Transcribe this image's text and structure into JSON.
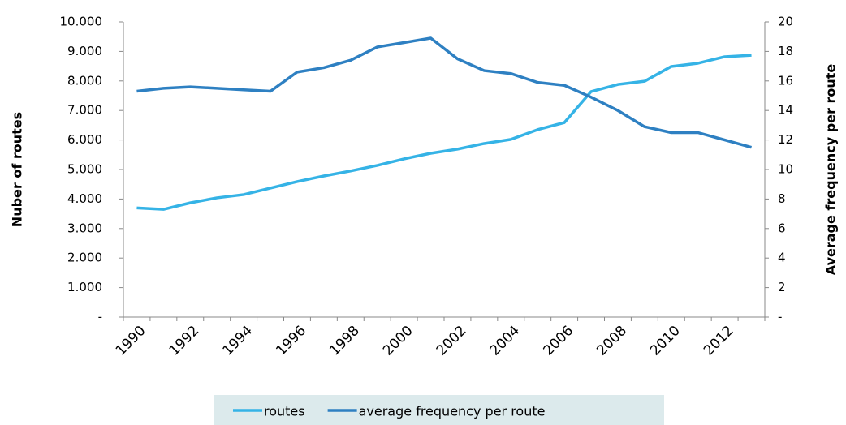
{
  "chart_data": {
    "type": "line",
    "categories": [
      "1990",
      null,
      "1992",
      null,
      "1994",
      null,
      "1996",
      null,
      "1998",
      null,
      "2000",
      null,
      "2002",
      null,
      "2004",
      null,
      "2006",
      null,
      "2008",
      null,
      "2010",
      null,
      "2012",
      null
    ],
    "ylabel": "Nuber of  routes",
    "y2label": "Average frequency per route",
    "ylim": [
      0,
      10000
    ],
    "yticks": [
      {
        "value": 0,
        "label": "-"
      },
      {
        "value": 1000,
        "label": "1.000"
      },
      {
        "value": 2000,
        "label": "2.000"
      },
      {
        "value": 3000,
        "label": "3.000"
      },
      {
        "value": 4000,
        "label": "4.000"
      },
      {
        "value": 5000,
        "label": "5.000"
      },
      {
        "value": 6000,
        "label": "6.000"
      },
      {
        "value": 7000,
        "label": "7.000"
      },
      {
        "value": 8000,
        "label": "8.000"
      },
      {
        "value": 9000,
        "label": "9.000"
      },
      {
        "value": 10000,
        "label": "10.000"
      }
    ],
    "y2lim": [
      0,
      20
    ],
    "y2ticks": [
      {
        "value": 0,
        "label": "-"
      },
      2,
      4,
      6,
      8,
      10,
      12,
      14,
      16,
      18,
      20
    ],
    "grid": false,
    "legend": "bottom",
    "series": [
      {
        "name": "routes",
        "color": "#35b3e6",
        "values": [
          3700,
          3650,
          3870,
          4040,
          4150,
          4370,
          4590,
          4780,
          4950,
          5140,
          5360,
          5550,
          5690,
          5880,
          6020,
          6350,
          6590,
          7640,
          7880,
          7990,
          8490,
          8600,
          8820,
          8870
        ]
      },
      {
        "name": "average frequency per route",
        "color": "#2e80c2",
        "axis": "y2",
        "values": [
          15.3,
          15.5,
          15.6,
          15.5,
          15.4,
          15.3,
          16.6,
          16.9,
          17.4,
          18.3,
          18.6,
          18.9,
          17.5,
          16.7,
          16.5,
          15.9,
          15.7,
          14.9,
          14.0,
          12.9,
          12.5,
          12.5,
          12.0,
          11.5
        ]
      }
    ]
  }
}
